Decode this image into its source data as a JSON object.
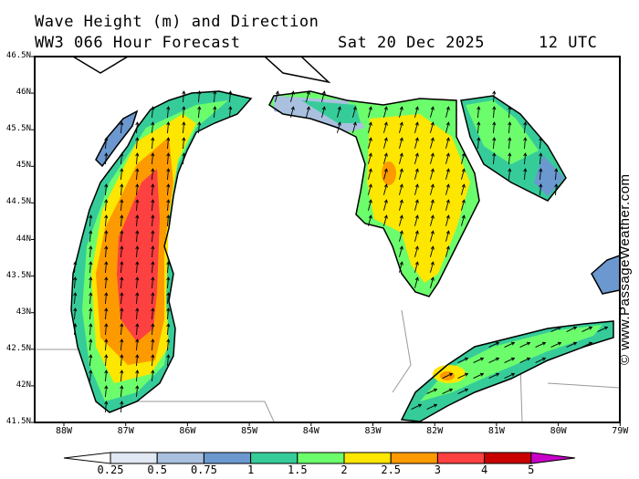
{
  "header": {
    "title": "Wave Height (m) and Direction",
    "model": "WW3 066 Hour Forecast",
    "date": "Sat 20 Dec 2025",
    "time": "12 UTC"
  },
  "axes": {
    "lat_labels": [
      "46.5N",
      "46N",
      "45.5N",
      "45N",
      "44.5N",
      "44N",
      "43.5N",
      "43N",
      "42.5N",
      "42N",
      "41.5N"
    ],
    "lon_labels": [
      "88W",
      "87W",
      "86W",
      "85W",
      "84W",
      "83W",
      "82W",
      "81W",
      "80W",
      "79W"
    ]
  },
  "colorbar": {
    "unit": "m",
    "labels": [
      "0.25",
      "0.5",
      "0.75",
      "1",
      "1.5",
      "2",
      "2.5",
      "3",
      "4",
      "5"
    ],
    "colors": [
      "#ffffff",
      "#e1e8f3",
      "#a9c0df",
      "#6b98cf",
      "#36cc9a",
      "#6cfd6c",
      "#fde600",
      "#fd9a00",
      "#fd4040",
      "#c80000",
      "#c800c8"
    ]
  },
  "wave_direction": {
    "lake_michigan_deg": 5,
    "lake_huron_deg": 15,
    "georgian_bay_deg": 5,
    "lake_erie_deg": 65
  },
  "watermark": "© www.PassageWeather.com"
}
